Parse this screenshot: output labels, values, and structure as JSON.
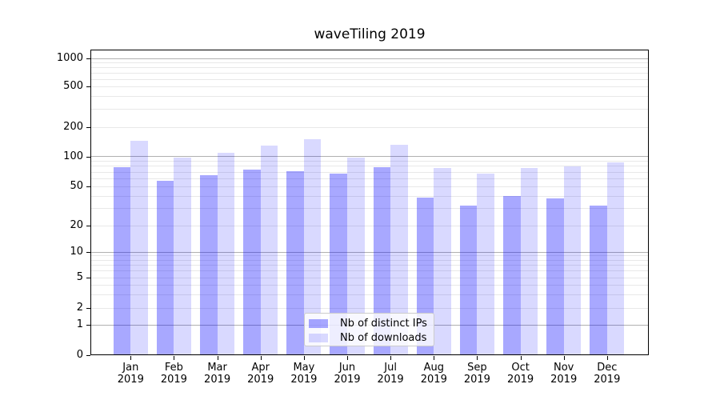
{
  "chart_data": {
    "type": "bar",
    "title": "waveTiling 2019",
    "x_axis": {
      "months": [
        "Jan",
        "Feb",
        "Mar",
        "Apr",
        "May",
        "Jun",
        "Jul",
        "Aug",
        "Sep",
        "Oct",
        "Nov",
        "Dec"
      ],
      "year": "2019"
    },
    "y_axis": {
      "scale": "symlog",
      "ticks": [
        0,
        1,
        2,
        5,
        10,
        20,
        50,
        100,
        200,
        500,
        1000
      ],
      "major_grid_values": [
        1,
        10,
        100,
        1000
      ],
      "ylim_top": 1250
    },
    "series": [
      {
        "name": "Nb of distinct IPs",
        "color": "rgba(0,0,255,0.34)",
        "values": [
          78,
          57,
          65,
          74,
          72,
          67,
          78,
          39,
          32,
          40,
          38,
          32
        ]
      },
      {
        "name": "Nb of downloads",
        "color": "rgba(0,0,255,0.15)",
        "values": [
          145,
          97,
          110,
          130,
          150,
          97,
          132,
          77,
          68,
          77,
          80,
          88
        ]
      }
    ],
    "legend": {
      "position": "inside-bottom-center"
    },
    "grid": {
      "horizontal": true,
      "vertical": false
    },
    "colors": {
      "spine": "#000000",
      "major_grid": "#b0b0b0",
      "minor_grid": "#e8e8e8",
      "text": "#000000",
      "legend_border": "#cccccc",
      "legend_background": "rgba(255,255,255,0.8)"
    }
  }
}
